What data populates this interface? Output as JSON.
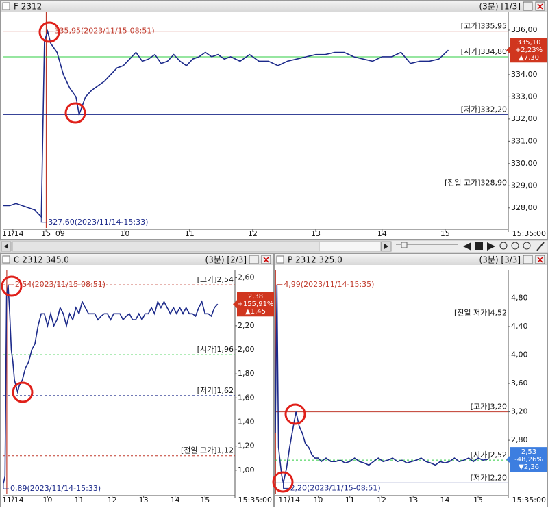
{
  "chart_data": [
    {
      "type": "line",
      "title": "F 2312",
      "subtitle": "(3분) [1/3]",
      "color": "#1c2a8a",
      "x": [
        0,
        2,
        4,
        6,
        8,
        10,
        12,
        13,
        14,
        15,
        17,
        19,
        21,
        23,
        24,
        26,
        28,
        30,
        32,
        34,
        36,
        38,
        40,
        42,
        44,
        46,
        48,
        50,
        52,
        54,
        56,
        58,
        60,
        62,
        64,
        66,
        68,
        70,
        72,
        75,
        78,
        81,
        84,
        87,
        90,
        93,
        96,
        99,
        102,
        105,
        108,
        111,
        114,
        117,
        120,
        123,
        126,
        129,
        132,
        135,
        138,
        141
      ],
      "values": [
        328.1,
        328.1,
        328.2,
        328.1,
        328.0,
        327.9,
        327.6,
        335.5,
        335.95,
        335.4,
        335.0,
        334.0,
        333.4,
        333.0,
        332.2,
        333.0,
        333.3,
        333.5,
        333.7,
        334.0,
        334.3,
        334.4,
        334.7,
        335.0,
        334.6,
        334.7,
        334.9,
        334.5,
        334.6,
        334.9,
        334.6,
        334.4,
        334.7,
        334.8,
        335.0,
        334.8,
        334.9,
        334.7,
        334.8,
        334.6,
        334.9,
        334.6,
        334.6,
        334.4,
        334.6,
        334.7,
        334.8,
        334.9,
        334.9,
        335.0,
        335.0,
        334.8,
        334.7,
        334.6,
        334.8,
        334.8,
        335.0,
        334.5,
        334.6,
        334.6,
        334.7,
        335.1
      ],
      "xlim": [
        0,
        160
      ],
      "ylim": [
        327.1,
        336.8
      ],
      "xticks": [
        {
          "value": 3,
          "label": "11/14"
        },
        {
          "value": 13.5,
          "label": "15"
        },
        {
          "value": 18,
          "label": "09"
        },
        {
          "value": 38.5,
          "label": "10"
        },
        {
          "value": 59,
          "label": "11"
        },
        {
          "value": 79,
          "label": "12"
        },
        {
          "value": 99,
          "label": "13"
        },
        {
          "value": 120,
          "label": "14"
        },
        {
          "value": 140,
          "label": "15"
        },
        {
          "value": 160,
          "label": "15:35:00"
        }
      ],
      "yticks": [
        {
          "value": 328,
          "label": "328,00"
        },
        {
          "value": 329,
          "label": "329,00"
        },
        {
          "value": 330,
          "label": "330,00"
        },
        {
          "value": 331,
          "label": "331,00"
        },
        {
          "value": 332,
          "label": "332,00"
        },
        {
          "value": 333,
          "label": "333,00"
        },
        {
          "value": 334,
          "label": "334,00"
        },
        {
          "value": 335,
          "label": "335,00"
        },
        {
          "value": 336,
          "label": "336,00"
        }
      ],
      "levels": [
        {
          "name": "[고가]",
          "value": 335.95,
          "label": "335,95",
          "color": "#c0392b",
          "style": "solid"
        },
        {
          "name": "[시가]",
          "value": 334.8,
          "label": "334,80",
          "color": "#2ecc40",
          "style": "solid"
        },
        {
          "name": "[저가]",
          "value": 332.2,
          "label": "332,20",
          "color": "#1c2a8a",
          "style": "solid"
        },
        {
          "name": "[전일 고가]",
          "value": 328.9,
          "label": "328,90",
          "color": "#c0392b",
          "style": "dashed"
        }
      ],
      "annotations": [
        {
          "x": 14,
          "value": 335.95,
          "label": "335,95(2023/11/15-08:51)",
          "color": "#c0392b"
        },
        {
          "x": 12,
          "value": 327.6,
          "label": "327,60(2023/11/14-15:33)",
          "color": "#1c2a8a"
        }
      ],
      "price_box": {
        "value": 335.1,
        "label": "335,10",
        "change": "+2,23%",
        "diff": "▲7,30",
        "color": "#d0361f"
      }
    },
    {
      "type": "line",
      "title": "C 2312 345.0",
      "subtitle": "(3분) [2/3]",
      "color": "#1c2a8a",
      "x": [
        0,
        1,
        2,
        3,
        4,
        5,
        6,
        7,
        8,
        9,
        10,
        12,
        14,
        16,
        18,
        20,
        22,
        24,
        26,
        28,
        30,
        32,
        34,
        36,
        38,
        40,
        42,
        44,
        46,
        48,
        50,
        52,
        54,
        56,
        58,
        60,
        62,
        64,
        66,
        68,
        70,
        72,
        74,
        76,
        78,
        80,
        82,
        84,
        86,
        88,
        90,
        92,
        94,
        96,
        98,
        100,
        102,
        104,
        106,
        108,
        110,
        112,
        114,
        116,
        118,
        120,
        122,
        124,
        126,
        128,
        130,
        132,
        134,
        136
      ],
      "values": [
        0.89,
        0.95,
        2.45,
        2.54,
        2.3,
        2.0,
        1.9,
        1.75,
        1.7,
        1.65,
        1.7,
        1.75,
        1.85,
        1.9,
        2.0,
        2.05,
        2.2,
        2.3,
        2.3,
        2.2,
        2.3,
        2.2,
        2.25,
        2.35,
        2.3,
        2.2,
        2.3,
        2.25,
        2.35,
        2.3,
        2.4,
        2.35,
        2.3,
        2.3,
        2.3,
        2.25,
        2.28,
        2.3,
        2.3,
        2.25,
        2.3,
        2.3,
        2.3,
        2.25,
        2.28,
        2.3,
        2.25,
        2.25,
        2.3,
        2.25,
        2.3,
        2.3,
        2.35,
        2.3,
        2.4,
        2.35,
        2.4,
        2.35,
        2.3,
        2.35,
        2.3,
        2.35,
        2.3,
        2.35,
        2.3,
        2.3,
        2.28,
        2.35,
        2.4,
        2.3,
        2.3,
        2.28,
        2.35,
        2.38
      ],
      "xlim": [
        0,
        147
      ],
      "ylim": [
        0.8,
        2.66
      ],
      "xticks": [
        {
          "value": 6,
          "label": "11/14"
        },
        {
          "value": 28,
          "label": "10"
        },
        {
          "value": 48,
          "label": "11"
        },
        {
          "value": 69,
          "label": "12"
        },
        {
          "value": 89,
          "label": "13"
        },
        {
          "value": 109,
          "label": "14"
        },
        {
          "value": 128,
          "label": "15"
        },
        {
          "value": 147,
          "label": "15:35:00"
        }
      ],
      "yticks": [
        {
          "value": 1.0,
          "label": "1,00"
        },
        {
          "value": 1.2,
          "label": "1,20"
        },
        {
          "value": 1.4,
          "label": "1,40"
        },
        {
          "value": 1.6,
          "label": "1,60"
        },
        {
          "value": 1.8,
          "label": "1,80"
        },
        {
          "value": 2.0,
          "label": "2,00"
        },
        {
          "value": 2.2,
          "label": "2,20"
        },
        {
          "value": 2.6,
          "label": "2,60"
        }
      ],
      "levels": [
        {
          "name": "[고가]",
          "value": 2.54,
          "label": "2,54",
          "color": "#c0392b",
          "style": "dashed"
        },
        {
          "name": "[시가]",
          "value": 1.96,
          "label": "1,96",
          "color": "#2ecc40",
          "style": "dashed"
        },
        {
          "name": "[저가]",
          "value": 1.62,
          "label": "1,62",
          "color": "#1c2a8a",
          "style": "dashed"
        },
        {
          "name": "[전일 고가]",
          "value": 1.12,
          "label": "1,12",
          "color": "#c0392b",
          "style": "dashed"
        }
      ],
      "annotations": [
        {
          "x": 3,
          "value": 2.54,
          "label": "2,54(2023/11/15-08:51)",
          "color": "#c0392b"
        },
        {
          "x": 0,
          "value": 0.89,
          "label": "0,89(2023/11/14-15:33)",
          "color": "#1c2a8a"
        }
      ],
      "price_box": {
        "value": 2.38,
        "label": "2,38",
        "change": "+155,91%",
        "diff": "▲1,45",
        "color": "#d0361f"
      }
    },
    {
      "type": "line",
      "title": "P 2312 325.0",
      "subtitle": "(3분) [3/3]",
      "color": "#1c2a8a",
      "x": [
        0,
        1,
        2,
        3,
        4,
        5,
        7,
        9,
        11,
        13,
        15,
        17,
        19,
        21,
        23,
        25,
        27,
        29,
        32,
        35,
        38,
        41,
        44,
        47,
        50,
        53,
        56,
        59,
        62,
        65,
        68,
        71,
        74,
        77,
        80,
        83,
        86,
        89,
        92,
        95,
        98,
        101,
        104,
        107,
        110,
        113,
        116,
        119,
        122,
        125,
        128,
        131,
        134
      ],
      "values": [
        2.9,
        4.99,
        2.7,
        2.5,
        2.3,
        2.2,
        2.4,
        2.7,
        2.95,
        3.2,
        3.0,
        2.9,
        2.75,
        2.7,
        2.6,
        2.55,
        2.55,
        2.5,
        2.55,
        2.5,
        2.5,
        2.52,
        2.48,
        2.5,
        2.55,
        2.5,
        2.48,
        2.45,
        2.5,
        2.55,
        2.5,
        2.52,
        2.55,
        2.5,
        2.52,
        2.48,
        2.5,
        2.52,
        2.55,
        2.5,
        2.48,
        2.45,
        2.5,
        2.48,
        2.5,
        2.55,
        2.5,
        2.52,
        2.55,
        2.5,
        2.55,
        2.52,
        2.53
      ],
      "xlim": [
        0,
        147
      ],
      "ylim": [
        2.04,
        5.19
      ],
      "xticks": [
        {
          "value": 8.7,
          "label": "11/14"
        },
        {
          "value": 27,
          "label": "10"
        },
        {
          "value": 47,
          "label": "11"
        },
        {
          "value": 67,
          "label": "12"
        },
        {
          "value": 87,
          "label": "13"
        },
        {
          "value": 107,
          "label": "14"
        },
        {
          "value": 128,
          "label": "15"
        },
        {
          "value": 147,
          "label": "15:35:00"
        }
      ],
      "yticks": [
        {
          "value": 2.8,
          "label": "2,80"
        },
        {
          "value": 3.2,
          "label": "3,20"
        },
        {
          "value": 3.6,
          "label": "3,60"
        },
        {
          "value": 4.0,
          "label": "4,00"
        },
        {
          "value": 4.4,
          "label": "4,40"
        },
        {
          "value": 4.8,
          "label": "4,80"
        }
      ],
      "levels": [
        {
          "name": "[전일 저가]",
          "value": 4.52,
          "label": "4,52",
          "color": "#1c2a8a",
          "style": "dashed"
        },
        {
          "name": "[고가]",
          "value": 3.2,
          "label": "3,20",
          "color": "#c0392b",
          "style": "solid"
        },
        {
          "name": "[시가]",
          "value": 2.52,
          "label": "2,52",
          "color": "#2ecc40",
          "style": "dashed"
        },
        {
          "name": "[저가]",
          "value": 2.2,
          "label": "2,20",
          "color": "#1c2a8a",
          "style": "solid"
        }
      ],
      "annotations": [
        {
          "x": 1,
          "value": 4.99,
          "label": "4,99(2023/11/14-15:35)",
          "color": "#c0392b"
        },
        {
          "x": 5,
          "value": 2.2,
          "label": "2,20(2023/11/15-08:51)",
          "color": "#1c2a8a"
        }
      ],
      "price_box": {
        "value": 2.53,
        "label": "2,53",
        "change": "-48,26%",
        "diff": "▼2,36",
        "color": "#3d7ee0"
      }
    }
  ]
}
